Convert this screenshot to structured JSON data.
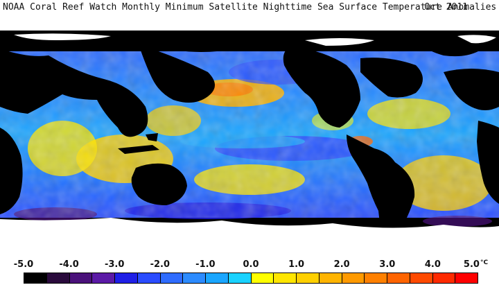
{
  "header": {
    "title": "NOAA Coral Reef Watch Monthly Minimum Satellite Nighttime Sea Surface Temperature Anomalies",
    "date": "Oct 2011"
  },
  "colorbar": {
    "ticks": [
      "-5.0",
      "-4.0",
      "-3.0",
      "-2.0",
      "-1.0",
      "0.0",
      "1.0",
      "2.0",
      "3.0",
      "4.0",
      "5.0"
    ],
    "unit": "°C",
    "colors": [
      "#000000",
      "#2a0a3c",
      "#4a117a",
      "#5b1aa6",
      "#1f1fe6",
      "#2a4cff",
      "#2f6cff",
      "#2c8bff",
      "#1aa6ff",
      "#1ad2ff",
      "#ffff00",
      "#ffe600",
      "#ffd000",
      "#ffb400",
      "#ff9a00",
      "#ff8000",
      "#ff6400",
      "#ff4a00",
      "#ff2a00",
      "#ff0000"
    ]
  }
}
